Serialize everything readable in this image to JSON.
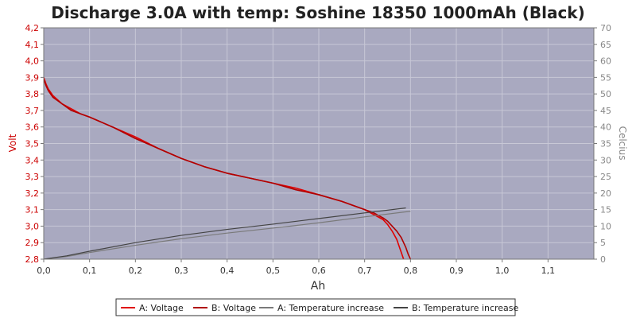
{
  "chart_data": {
    "type": "line",
    "title": "Discharge 3.0A with temp: Soshine 18350 1000mAh (Black)",
    "xlabel": "Ah",
    "ylabel_left": "Volt",
    "ylabel_right": "Celcius",
    "xlim": [
      0,
      1.2
    ],
    "ylim_left": [
      2.8,
      4.2
    ],
    "ylim_right": [
      0,
      70
    ],
    "x_ticks": [
      0,
      0.1,
      0.2,
      0.3,
      0.4,
      0.5,
      0.6,
      0.7,
      0.8,
      0.9,
      1.0,
      1.1
    ],
    "x_tick_labels": [
      "0,0",
      "0,1",
      "0,2",
      "0,3",
      "0,4",
      "0,5",
      "0,6",
      "0,7",
      "0,8",
      "0,9",
      "1,0",
      "1,1"
    ],
    "y_left_ticks": [
      2.8,
      2.9,
      3.0,
      3.1,
      3.2,
      3.3,
      3.4,
      3.5,
      3.6,
      3.7,
      3.8,
      3.9,
      4.0,
      4.1,
      4.2
    ],
    "y_left_tick_labels": [
      "2,8",
      "2,9",
      "3,0",
      "3,1",
      "3,2",
      "3,3",
      "3,4",
      "3,5",
      "3,6",
      "3,7",
      "3,8",
      "3,9",
      "4,0",
      "4,1",
      "4,2"
    ],
    "y_right_ticks": [
      0,
      5,
      10,
      15,
      20,
      25,
      30,
      35,
      40,
      45,
      50,
      55,
      60,
      65,
      70
    ],
    "y_right_tick_labels": [
      "0",
      "5",
      "10",
      "15",
      "20",
      "25",
      "30",
      "35",
      "40",
      "45",
      "50",
      "55",
      "60",
      "65",
      "70"
    ],
    "grid": true,
    "legend_position": "bottom",
    "colors": {
      "plot_background": "#a9a9c0",
      "grid": "#c8c8d6",
      "voltage_a": "#e00000",
      "voltage_b": "#b00000",
      "temp_a": "#7a7a7a",
      "temp_b": "#444444",
      "left_axis_text": "#cc0000",
      "right_axis_text": "#888888"
    },
    "series": [
      {
        "name": "A: Voltage",
        "axis": "left",
        "x": [
          0,
          0.005,
          0.01,
          0.02,
          0.04,
          0.06,
          0.08,
          0.1,
          0.15,
          0.2,
          0.25,
          0.3,
          0.35,
          0.4,
          0.45,
          0.5,
          0.55,
          0.6,
          0.65,
          0.68,
          0.7,
          0.72,
          0.74,
          0.75,
          0.76,
          0.77,
          0.775,
          0.78,
          0.785
        ],
        "y": [
          3.9,
          3.86,
          3.83,
          3.79,
          3.74,
          3.71,
          3.68,
          3.66,
          3.6,
          3.54,
          3.47,
          3.41,
          3.36,
          3.32,
          3.29,
          3.26,
          3.23,
          3.19,
          3.15,
          3.12,
          3.1,
          3.07,
          3.04,
          3.01,
          2.97,
          2.92,
          2.88,
          2.84,
          2.8
        ]
      },
      {
        "name": "B: Voltage",
        "axis": "left",
        "x": [
          0,
          0.005,
          0.01,
          0.02,
          0.04,
          0.06,
          0.08,
          0.1,
          0.15,
          0.2,
          0.25,
          0.3,
          0.35,
          0.4,
          0.45,
          0.5,
          0.55,
          0.6,
          0.65,
          0.68,
          0.7,
          0.72,
          0.74,
          0.75,
          0.76,
          0.77,
          0.78,
          0.785,
          0.79,
          0.795,
          0.8
        ],
        "y": [
          3.89,
          3.85,
          3.82,
          3.78,
          3.74,
          3.7,
          3.68,
          3.66,
          3.6,
          3.53,
          3.47,
          3.41,
          3.36,
          3.32,
          3.29,
          3.26,
          3.22,
          3.19,
          3.15,
          3.12,
          3.1,
          3.08,
          3.05,
          3.03,
          3.0,
          2.97,
          2.93,
          2.9,
          2.87,
          2.83,
          2.8
        ]
      },
      {
        "name": "A: Temperature increase",
        "axis": "right",
        "x": [
          0,
          0.05,
          0.1,
          0.2,
          0.3,
          0.4,
          0.5,
          0.6,
          0.7,
          0.8
        ],
        "y": [
          0,
          0.8,
          2.0,
          4.2,
          6.2,
          7.9,
          9.4,
          11.0,
          12.8,
          14.5
        ]
      },
      {
        "name": "B: Temperature increase",
        "axis": "right",
        "x": [
          0,
          0.05,
          0.1,
          0.2,
          0.3,
          0.4,
          0.5,
          0.6,
          0.7,
          0.79
        ],
        "y": [
          0,
          1.0,
          2.4,
          5.0,
          7.2,
          9.0,
          10.6,
          12.3,
          14.0,
          15.5
        ]
      }
    ]
  }
}
